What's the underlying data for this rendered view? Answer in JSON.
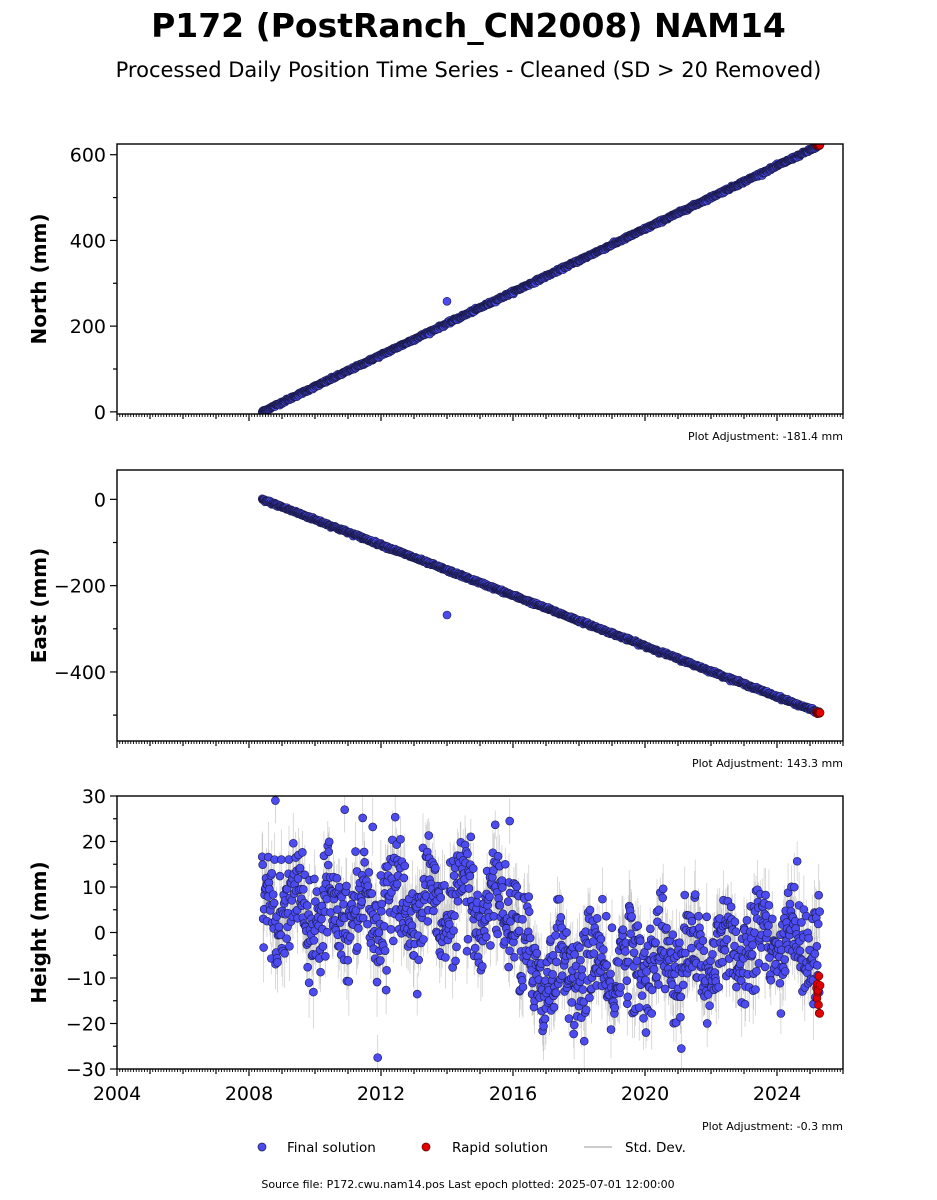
{
  "title": "P172 (PostRanch_CN2008) NAM14",
  "subtitle": "Processed Daily Position Time Series - Cleaned (SD > 20 Removed)",
  "footer": "Source file: P172.cwu.nam14.pos  Last epoch plotted: 2025-07-01 12:00:00",
  "legend": {
    "final": "Final solution",
    "rapid": "Rapid solution",
    "stddev": "Std. Dev."
  },
  "colors": {
    "final_fill": "#4b4bf0",
    "final_edge": "#1a1a4a",
    "rapid_fill": "#e00000",
    "stddev": "#9a9a9a",
    "axes": "#000000"
  },
  "chart_data": [
    {
      "type": "scatter",
      "panel": "north",
      "ylabel": "North (mm)",
      "xlim": [
        2004,
        2026
      ],
      "ylim": [
        -5,
        625
      ],
      "yticks": [
        0,
        200,
        400,
        600
      ],
      "yticklabels": [
        "0",
        "200",
        "400",
        "600"
      ],
      "adjustment": "Plot Adjustment: -181.4 mm",
      "trend": {
        "start": [
          2008.4,
          0
        ],
        "end": [
          2025.3,
          622
        ]
      },
      "outliers": [
        [
          2014.0,
          258
        ]
      ],
      "rapid": {
        "x_range": [
          2025.2,
          2025.5
        ],
        "y": 622
      },
      "noise_mm": 1.5
    },
    {
      "type": "scatter",
      "panel": "east",
      "ylabel": "East (mm)",
      "xlim": [
        2004,
        2026
      ],
      "ylim": [
        -560,
        68
      ],
      "yticks": [
        0,
        -200,
        -400
      ],
      "yticklabels": [
        "0",
        "−200",
        "−400"
      ],
      "adjustment": "Plot Adjustment: 143.3 mm",
      "trend": {
        "start": [
          2008.4,
          0
        ],
        "end": [
          2025.3,
          -495
        ]
      },
      "outliers": [
        [
          2014.0,
          -268
        ]
      ],
      "rapid": {
        "x_range": [
          2025.2,
          2025.5
        ],
        "y": -495
      },
      "noise_mm": 1.5
    },
    {
      "type": "scatter",
      "panel": "height",
      "ylabel": "Height (mm)",
      "xlim": [
        2004,
        2026
      ],
      "ylim": [
        -30,
        30
      ],
      "yticks": [
        30,
        20,
        10,
        0,
        -10,
        -20,
        -30
      ],
      "yticklabels": [
        "30",
        "20",
        "10",
        "0",
        "−10",
        "−20",
        "−30"
      ],
      "xticks": [
        2004,
        2008,
        2012,
        2016,
        2020,
        2024
      ],
      "xticklabels": [
        "2004",
        "2008",
        "2012",
        "2016",
        "2020",
        "2024"
      ],
      "adjustment": "Plot Adjustment: -0.3 mm",
      "mean_segments": [
        {
          "x": [
            2008.4,
            2016.2
          ],
          "y": 6
        },
        {
          "x": [
            2016.2,
            2019.5
          ],
          "y": -8
        },
        {
          "x": [
            2019.5,
            2022.5
          ],
          "y": -6
        },
        {
          "x": [
            2022.5,
            2025.3
          ],
          "y": -2
        }
      ],
      "outliers": [
        [
          2008.8,
          29
        ],
        [
          2010.9,
          27
        ],
        [
          2011.9,
          -27.5
        ],
        [
          2015.9,
          24.5
        ],
        [
          2021.1,
          -25.5
        ]
      ],
      "rapid": {
        "x_range": [
          2025.2,
          2025.5
        ],
        "y_range": [
          -18,
          -9
        ]
      },
      "noise_mm": 5.5
    }
  ]
}
